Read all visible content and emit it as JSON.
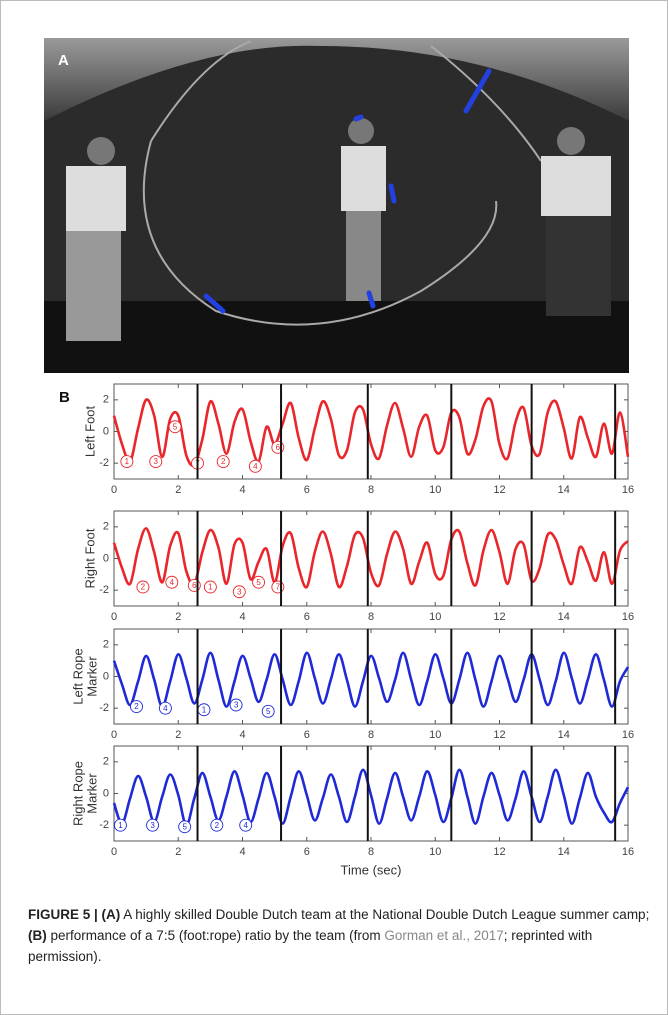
{
  "figure": {
    "panel_a_label": "A",
    "panel_b_label": "B"
  },
  "chart_data": [
    {
      "type": "line",
      "ylabel": [
        "Left Foot"
      ],
      "color": "#e8262b",
      "x": [
        0,
        0.25,
        0.5,
        0.75,
        1,
        1.25,
        1.5,
        1.75,
        2,
        2.25,
        2.5,
        2.75,
        3,
        3.25,
        3.5,
        3.75,
        4,
        4.25,
        4.5,
        4.75,
        5,
        5.25,
        5.5,
        5.75,
        6,
        6.25,
        6.5,
        6.75,
        7,
        7.25,
        7.5,
        7.75,
        8,
        8.25,
        8.5,
        8.75,
        9,
        9.25,
        9.5,
        9.75,
        10,
        10.25,
        10.5,
        10.75,
        11,
        11.25,
        11.5,
        11.75,
        12,
        12.25,
        12.5,
        12.75,
        13,
        13.25,
        13.5,
        13.75,
        14,
        14.25,
        14.5,
        14.75,
        15,
        15.25,
        15.5,
        15.75,
        16
      ],
      "values": [
        1.0,
        -0.8,
        -1.9,
        0.2,
        2.0,
        1.0,
        -1.6,
        0.8,
        1.0,
        -1.5,
        -2.1,
        -0.5,
        1.9,
        0.5,
        -1.4,
        0.6,
        1.4,
        -0.6,
        -1.9,
        0.3,
        -0.8,
        0.5,
        1.8,
        -0.4,
        -1.8,
        0.2,
        1.9,
        0.8,
        -1.5,
        -1.2,
        1.2,
        1.4,
        -0.8,
        -1.7,
        0.4,
        1.8,
        0.2,
        -1.6,
        0.3,
        1.0,
        -1.2,
        -1.0,
        1.2,
        0.9,
        -1.4,
        -0.5,
        1.6,
        1.9,
        -0.8,
        -1.7,
        0.6,
        1.5,
        -0.9,
        -1.4,
        1.2,
        1.9,
        0.2,
        -1.7,
        0.9,
        -0.4,
        -1.6,
        0.5,
        -1.4,
        1.2,
        -1.6
      ],
      "xlim": [
        0,
        16
      ],
      "xticks": [
        0,
        2,
        4,
        6,
        8,
        10,
        12,
        14,
        16
      ],
      "ylim": [
        -3,
        3
      ],
      "yticks": [
        -2,
        0,
        2
      ],
      "vlines": [
        2.6,
        5.2,
        7.9,
        10.5,
        13.0,
        15.6
      ],
      "annotations": [
        {
          "x": 0.4,
          "y": -1.9,
          "label": "1"
        },
        {
          "x": 1.3,
          "y": -1.9,
          "label": "3"
        },
        {
          "x": 1.9,
          "y": 0.3,
          "label": "5"
        },
        {
          "x": 2.6,
          "y": -2.0,
          "label": "7"
        },
        {
          "x": 3.4,
          "y": -1.9,
          "label": "2"
        },
        {
          "x": 4.4,
          "y": -2.2,
          "label": "4"
        },
        {
          "x": 5.1,
          "y": -1.0,
          "label": "6"
        }
      ]
    },
    {
      "type": "line",
      "ylabel": [
        "Right Foot"
      ],
      "color": "#e8262b",
      "x": [
        0,
        0.25,
        0.5,
        0.75,
        1,
        1.25,
        1.5,
        1.75,
        2,
        2.25,
        2.5,
        2.75,
        3,
        3.25,
        3.5,
        3.75,
        4,
        4.25,
        4.5,
        4.75,
        5,
        5.25,
        5.5,
        5.75,
        6,
        6.25,
        6.5,
        6.75,
        7,
        7.25,
        7.5,
        7.75,
        8,
        8.25,
        8.5,
        8.75,
        9,
        9.25,
        9.5,
        9.75,
        10,
        10.25,
        10.5,
        10.75,
        11,
        11.25,
        11.5,
        11.75,
        12,
        12.25,
        12.5,
        12.75,
        13,
        13.25,
        13.5,
        13.75,
        14,
        14.25,
        14.5,
        14.75,
        15,
        15.25,
        15.5,
        15.75,
        16
      ],
      "values": [
        1.0,
        -0.6,
        -1.6,
        0.6,
        1.9,
        0.4,
        -1.5,
        0.8,
        1.6,
        -0.8,
        -1.6,
        0.4,
        1.8,
        0.7,
        -1.6,
        0.9,
        1.0,
        -1.3,
        -0.2,
        0.6,
        -1.5,
        0.8,
        1.6,
        -0.6,
        -1.8,
        0.4,
        1.7,
        0.3,
        -1.8,
        -0.5,
        1.5,
        1.3,
        -0.9,
        -1.7,
        0.3,
        1.7,
        0.6,
        -1.6,
        -0.2,
        1.0,
        -1.0,
        -1.1,
        1.2,
        1.7,
        -0.3,
        -1.7,
        0.5,
        1.8,
        0.4,
        -1.6,
        0.6,
        0.9,
        -1.4,
        -0.6,
        1.5,
        1.2,
        -0.4,
        -1.6,
        0.7,
        -0.2,
        -1.4,
        0.4,
        -1.6,
        0.5,
        1.1
      ],
      "xlim": [
        0,
        16
      ],
      "xticks": [
        0,
        2,
        4,
        6,
        8,
        10,
        12,
        14,
        16
      ],
      "ylim": [
        -3,
        3
      ],
      "yticks": [
        -2,
        0,
        2
      ],
      "vlines": [
        2.6,
        5.2,
        7.9,
        10.5,
        13.0,
        15.6
      ],
      "annotations": [
        {
          "x": 0.9,
          "y": -1.8,
          "label": "2"
        },
        {
          "x": 1.8,
          "y": -1.5,
          "label": "4"
        },
        {
          "x": 2.5,
          "y": -1.7,
          "label": "6"
        },
        {
          "x": 3.0,
          "y": -1.8,
          "label": "1"
        },
        {
          "x": 3.9,
          "y": -2.1,
          "label": "3"
        },
        {
          "x": 4.5,
          "y": -1.5,
          "label": "5"
        },
        {
          "x": 5.1,
          "y": -1.8,
          "label": "7"
        }
      ]
    },
    {
      "type": "line",
      "ylabel": [
        "Left Rope",
        "Marker"
      ],
      "color": "#1f2ad6",
      "x": [
        0,
        0.25,
        0.5,
        0.75,
        1,
        1.25,
        1.5,
        1.75,
        2,
        2.25,
        2.5,
        2.75,
        3,
        3.25,
        3.5,
        3.75,
        4,
        4.25,
        4.5,
        4.75,
        5,
        5.25,
        5.5,
        5.75,
        6,
        6.25,
        6.5,
        6.75,
        7,
        7.25,
        7.5,
        7.75,
        8,
        8.25,
        8.5,
        8.75,
        9,
        9.25,
        9.5,
        9.75,
        10,
        10.25,
        10.5,
        10.75,
        11,
        11.25,
        11.5,
        11.75,
        12,
        12.25,
        12.5,
        12.75,
        13,
        13.25,
        13.5,
        13.75,
        14,
        14.25,
        14.5,
        14.75,
        15,
        15.25,
        15.5,
        15.75,
        16
      ],
      "values": [
        1.0,
        -0.5,
        -1.8,
        -0.3,
        1.3,
        -0.2,
        -1.9,
        -0.3,
        1.4,
        -0.1,
        -1.7,
        -0.2,
        1.5,
        -0.2,
        -1.9,
        -0.3,
        1.3,
        -0.1,
        -1.6,
        -0.2,
        1.4,
        -0.2,
        -1.8,
        -0.3,
        1.5,
        -0.1,
        -1.7,
        -0.2,
        1.4,
        -0.2,
        -1.9,
        -0.3,
        1.3,
        -0.1,
        -1.6,
        -0.2,
        1.5,
        -0.2,
        -1.8,
        -0.3,
        1.4,
        -0.1,
        -1.7,
        -0.2,
        1.5,
        -0.2,
        -1.9,
        -0.3,
        1.3,
        -0.1,
        -1.6,
        -0.2,
        1.4,
        -0.2,
        -1.8,
        -0.3,
        1.5,
        -0.1,
        -1.7,
        -0.2,
        1.4,
        -0.2,
        -1.9,
        -0.3,
        0.6
      ],
      "xlim": [
        0,
        16
      ],
      "xticks": [
        0,
        2,
        4,
        6,
        8,
        10,
        12,
        14,
        16
      ],
      "ylim": [
        -3,
        3
      ],
      "yticks": [
        -2,
        0,
        2
      ],
      "vlines": [
        2.6,
        5.2,
        7.9,
        10.5,
        13.0,
        15.6
      ],
      "annotations": [
        {
          "x": 0.7,
          "y": -1.9,
          "label": "2"
        },
        {
          "x": 1.6,
          "y": -2.0,
          "label": "4"
        },
        {
          "x": 2.8,
          "y": -2.1,
          "label": "1"
        },
        {
          "x": 3.8,
          "y": -1.8,
          "label": "3"
        },
        {
          "x": 4.8,
          "y": -2.2,
          "label": "5"
        }
      ]
    },
    {
      "type": "line",
      "ylabel": [
        "Right Rope",
        "Marker"
      ],
      "color": "#1f2ad6",
      "xlabel": "Time (sec)",
      "x": [
        0,
        0.25,
        0.5,
        0.75,
        1,
        1.25,
        1.5,
        1.75,
        2,
        2.25,
        2.5,
        2.75,
        3,
        3.25,
        3.5,
        3.75,
        4,
        4.25,
        4.5,
        4.75,
        5,
        5.25,
        5.5,
        5.75,
        6,
        6.25,
        6.5,
        6.75,
        7,
        7.25,
        7.5,
        7.75,
        8,
        8.25,
        8.5,
        8.75,
        9,
        9.25,
        9.5,
        9.75,
        10,
        10.25,
        10.5,
        10.75,
        11,
        11.25,
        11.5,
        11.75,
        12,
        12.25,
        12.5,
        12.75,
        13,
        13.25,
        13.5,
        13.75,
        14,
        14.25,
        14.5,
        14.75,
        15,
        15.25,
        15.5,
        15.75,
        16
      ],
      "values": [
        -0.6,
        -1.9,
        -0.3,
        1.1,
        -0.2,
        -1.8,
        -0.2,
        1.2,
        -0.1,
        -2.0,
        -0.3,
        1.3,
        -0.2,
        -1.7,
        -0.2,
        1.4,
        -0.1,
        -1.8,
        -0.3,
        1.3,
        -0.2,
        -1.9,
        -0.2,
        1.4,
        -0.1,
        -1.7,
        -0.3,
        1.2,
        -0.2,
        -1.8,
        -0.2,
        1.5,
        -0.1,
        -1.9,
        -0.3,
        1.3,
        -0.2,
        -1.7,
        -0.2,
        1.4,
        -0.1,
        -1.8,
        -0.3,
        1.5,
        -0.2,
        -1.9,
        -0.2,
        1.3,
        -0.1,
        -1.7,
        -0.3,
        1.4,
        -0.2,
        -1.8,
        -0.2,
        1.5,
        -0.1,
        -1.9,
        -0.3,
        1.3,
        -0.2,
        -1.2,
        -1.8,
        -0.6,
        0.4
      ],
      "xlim": [
        0,
        16
      ],
      "xticks": [
        0,
        2,
        4,
        6,
        8,
        10,
        12,
        14,
        16
      ],
      "ylim": [
        -3,
        3
      ],
      "yticks": [
        -2,
        0,
        2
      ],
      "vlines": [
        2.6,
        5.2,
        7.9,
        10.5,
        13.0,
        15.6
      ],
      "annotations": [
        {
          "x": 0.2,
          "y": -2.0,
          "label": "1"
        },
        {
          "x": 1.2,
          "y": -2.0,
          "label": "3"
        },
        {
          "x": 2.2,
          "y": -2.1,
          "label": "5"
        },
        {
          "x": 3.2,
          "y": -2.0,
          "label": "2"
        },
        {
          "x": 4.1,
          "y": -2.0,
          "label": "4"
        }
      ]
    }
  ],
  "caption": [
    {
      "text": "FIGURE 5 | (A)",
      "style": "bold"
    },
    {
      "text": " A highly skilled Double Dutch team at the National Double Dutch League summer camp; ",
      "style": "plain"
    },
    {
      "text": "(B)",
      "style": "bold"
    },
    {
      "text": " performance of a 7:5 (foot:rope) ratio by the team (from ",
      "style": "plain"
    },
    {
      "text": "Gorman et al., 2017",
      "style": "link"
    },
    {
      "text": "; reprinted with permission).",
      "style": "plain"
    }
  ]
}
